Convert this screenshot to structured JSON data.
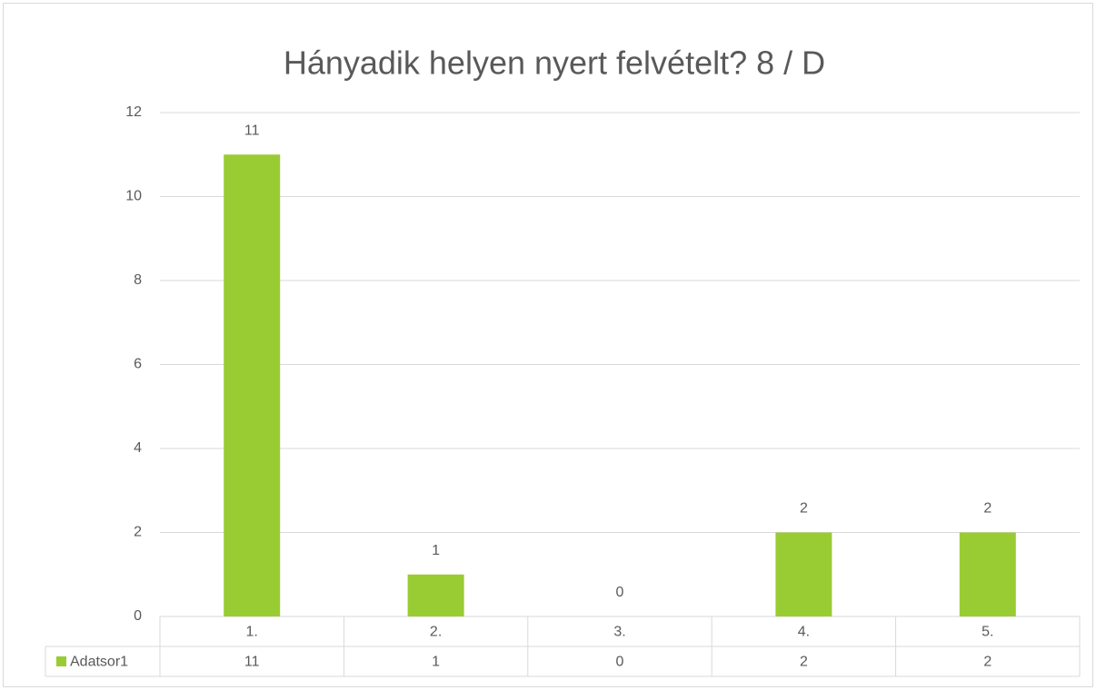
{
  "chart_data": {
    "type": "bar",
    "title": "Hányadik helyen nyert felvételt? 8 / D",
    "categories": [
      "1.",
      "2.",
      "3.",
      "4.",
      "5."
    ],
    "series": [
      {
        "name": "Adatsor1",
        "color": "#99cc33",
        "values": [
          11,
          1,
          0,
          2,
          2
        ]
      }
    ],
    "ylim": [
      0,
      12
    ],
    "yticks": [
      0,
      2,
      4,
      6,
      8,
      10,
      12
    ],
    "grid": true
  }
}
